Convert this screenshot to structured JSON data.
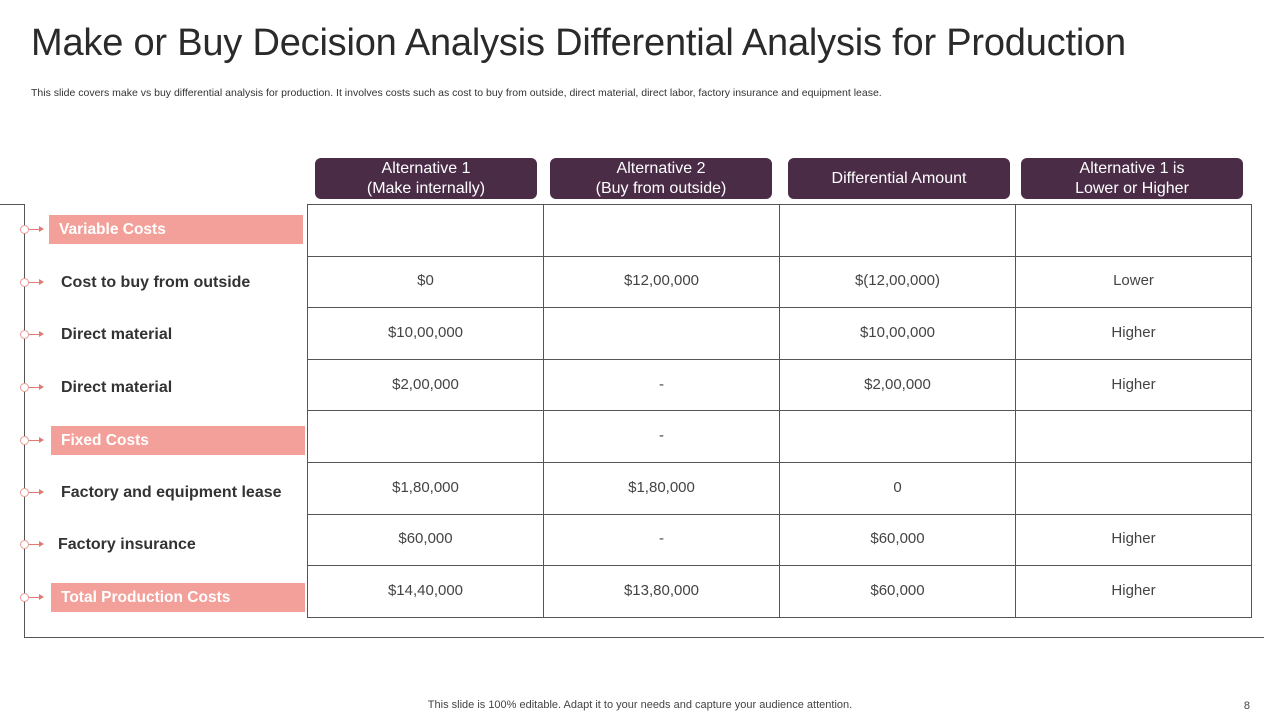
{
  "title": "Make or Buy Decision Analysis Differential Analysis for Production",
  "subtitle": "This slide covers make vs buy differential analysis for production. It involves costs such as cost to buy from outside, direct material, direct labor, factory insurance and equipment lease.",
  "headers": [
    {
      "line1": "Alternative 1",
      "line2": "(Make internally)"
    },
    {
      "line1": "Alternative 2",
      "line2": "(Buy from outside)"
    },
    {
      "line1": "Differential Amount",
      "line2": ""
    },
    {
      "line1": "Alternative 1 is",
      "line2": "Lower or Higher"
    }
  ],
  "rows": [
    {
      "label": "Variable Costs",
      "type": "section",
      "cells": [
        "",
        "",
        "",
        ""
      ]
    },
    {
      "label": "Cost to buy from outside",
      "type": "item",
      "cells": [
        "$0",
        "$12,00,000",
        "$(12,00,000)",
        "Lower"
      ]
    },
    {
      "label": "Direct material",
      "type": "item",
      "cells": [
        "$10,00,000",
        "",
        "$10,00,000",
        "Higher"
      ]
    },
    {
      "label": "Direct material",
      "type": "item",
      "cells": [
        "$2,00,000",
        "-",
        "$2,00,000",
        "Higher"
      ]
    },
    {
      "label": "Fixed Costs",
      "type": "section",
      "cells": [
        "",
        "-",
        "",
        ""
      ]
    },
    {
      "label": "Factory and equipment lease",
      "type": "item",
      "cells": [
        "$1,80,000",
        "$1,80,000",
        "0",
        ""
      ]
    },
    {
      "label": "Factory insurance",
      "type": "item",
      "cells": [
        "$60,000",
        "-",
        "$60,000",
        "Higher"
      ]
    },
    {
      "label": "Total Production Costs",
      "type": "section",
      "cells": [
        "$14,40,000",
        "$13,80,000",
        "$60,000",
        "Higher"
      ]
    }
  ],
  "footer": "This slide is 100% editable. Adapt it to your needs and capture your audience attention.",
  "page_number": "8",
  "colors": {
    "header_bg": "#4a2c47",
    "section_pill": "#f4a09a",
    "marker": "#e07a74"
  }
}
